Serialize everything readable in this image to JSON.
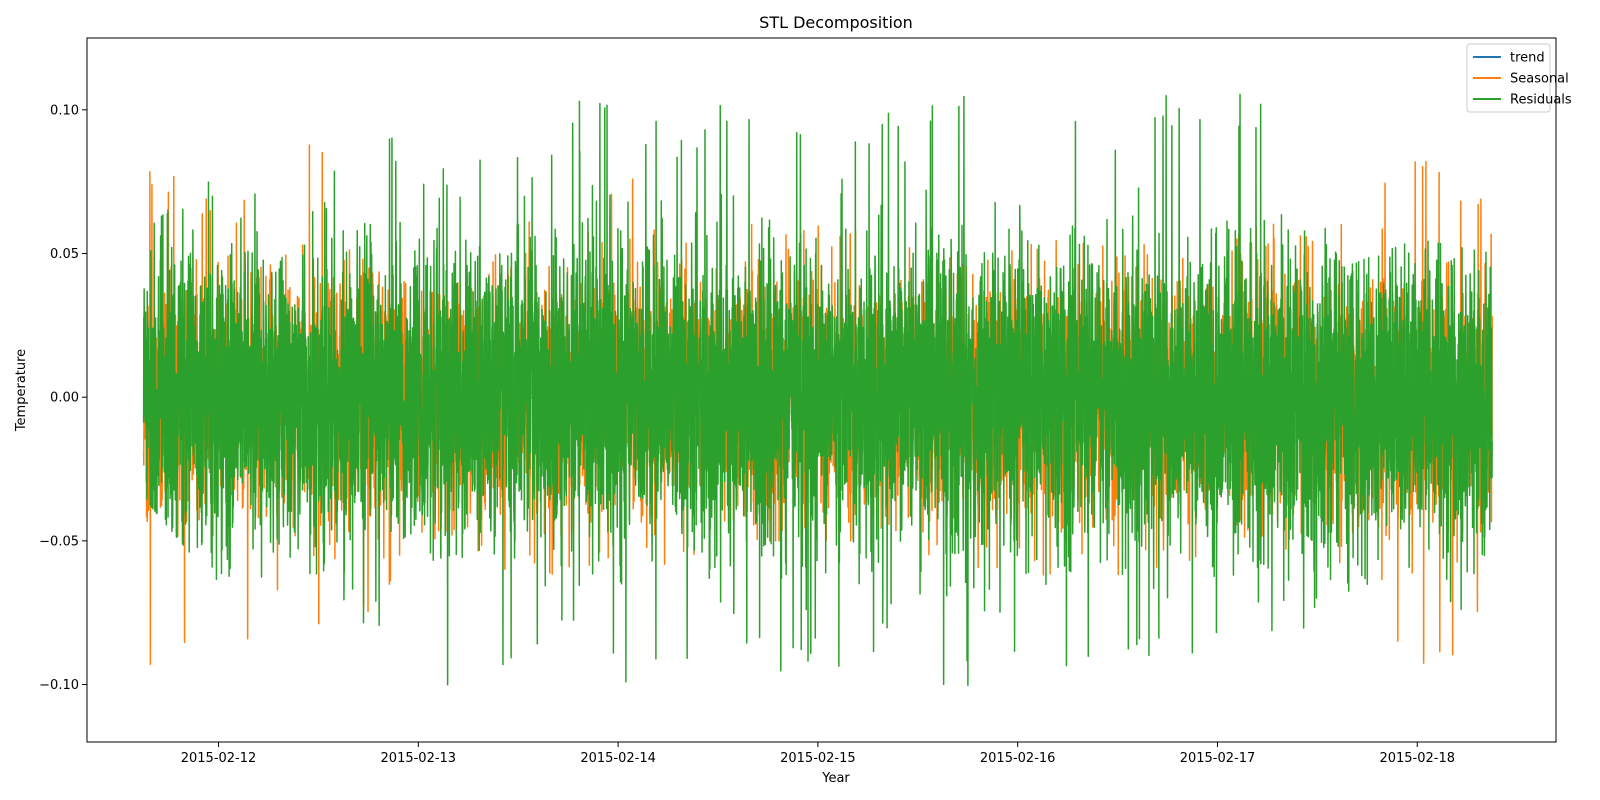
{
  "chart_data": {
    "type": "line",
    "title": "STL Decomposition",
    "xlabel": "Year",
    "ylabel": "Temperature",
    "x_range": [
      "2015-02-11T00:00",
      "2015-02-18T23:59"
    ],
    "xlim": [
      "2015-02-11T08:12",
      "2015-02-18T16:40"
    ],
    "ylim": [
      -0.12,
      0.125
    ],
    "x_tick_labels": [
      "2015-02-12",
      "2015-02-13",
      "2015-02-14",
      "2015-02-15",
      "2015-02-16",
      "2015-02-17",
      "2015-02-18"
    ],
    "y_ticks": [
      -0.1,
      -0.05,
      0.0,
      0.05,
      0.1
    ],
    "y_tick_labels": [
      "−0.10",
      "−0.05",
      "0.00",
      "0.05",
      "0.10"
    ],
    "grid": false,
    "legend_position": "top-right",
    "series": [
      {
        "name": "trend",
        "color": "#1f77b4",
        "x": [
          "2015-02-11T15:00",
          "2015-02-18T09:00"
        ],
        "y": [
          0.0,
          0.0
        ]
      },
      {
        "name": "Seasonal",
        "color": "#ff7f0e",
        "x": [
          "2015-02-11T15:00",
          "2015-02-12T00:00",
          "2015-02-12T09:00",
          "2015-02-12T18:00",
          "2015-02-13T03:00",
          "2015-02-13T12:00",
          "2015-02-13T21:00",
          "2015-02-14T06:00",
          "2015-02-14T15:00",
          "2015-02-15T00:00",
          "2015-02-15T09:00",
          "2015-02-15T18:00",
          "2015-02-16T03:00",
          "2015-02-16T12:00",
          "2015-02-16T21:00",
          "2015-02-17T06:00",
          "2015-02-17T15:00",
          "2015-02-18T00:00",
          "2015-02-18T09:00"
        ],
        "y_max": [
          0.085,
          0.07,
          0.116,
          0.045,
          0.035,
          0.06,
          0.07,
          0.082,
          0.06,
          0.06,
          0.062,
          0.045,
          0.055,
          0.052,
          0.055,
          0.06,
          0.062,
          0.085,
          0.073
        ],
        "y_min": [
          -0.095,
          -0.098,
          -0.09,
          -0.075,
          -0.046,
          -0.063,
          -0.06,
          -0.06,
          -0.05,
          -0.05,
          -0.05,
          -0.06,
          -0.062,
          -0.065,
          -0.06,
          -0.055,
          -0.065,
          -0.094,
          -0.085
        ],
        "y_typical": 0.035
      },
      {
        "name": "Residuals",
        "color": "#2ca02c",
        "x": [
          "2015-02-11T15:00",
          "2015-02-12T00:00",
          "2015-02-12T09:00",
          "2015-02-12T18:00",
          "2015-02-13T03:00",
          "2015-02-13T12:00",
          "2015-02-13T21:00",
          "2015-02-14T06:00",
          "2015-02-14T15:00",
          "2015-02-15T00:00",
          "2015-02-15T09:00",
          "2015-02-15T18:00",
          "2015-02-16T03:00",
          "2015-02-16T12:00",
          "2015-02-16T21:00",
          "2015-02-17T06:00",
          "2015-02-17T15:00",
          "2015-02-18T00:00",
          "2015-02-18T09:00"
        ],
        "y_max": [
          0.057,
          0.082,
          0.06,
          0.097,
          0.08,
          0.085,
          0.114,
          0.095,
          0.106,
          0.1,
          0.105,
          0.115,
          0.1,
          0.095,
          0.113,
          0.105,
          0.045,
          0.055,
          0.05
        ],
        "y_min": [
          -0.035,
          -0.066,
          -0.06,
          -0.08,
          -0.109,
          -0.096,
          -0.1,
          -0.1,
          -0.098,
          -0.095,
          -0.09,
          -0.106,
          -0.1,
          -0.095,
          -0.101,
          -0.09,
          -0.07,
          -0.075,
          -0.073
        ],
        "y_typical": 0.045
      }
    ]
  }
}
